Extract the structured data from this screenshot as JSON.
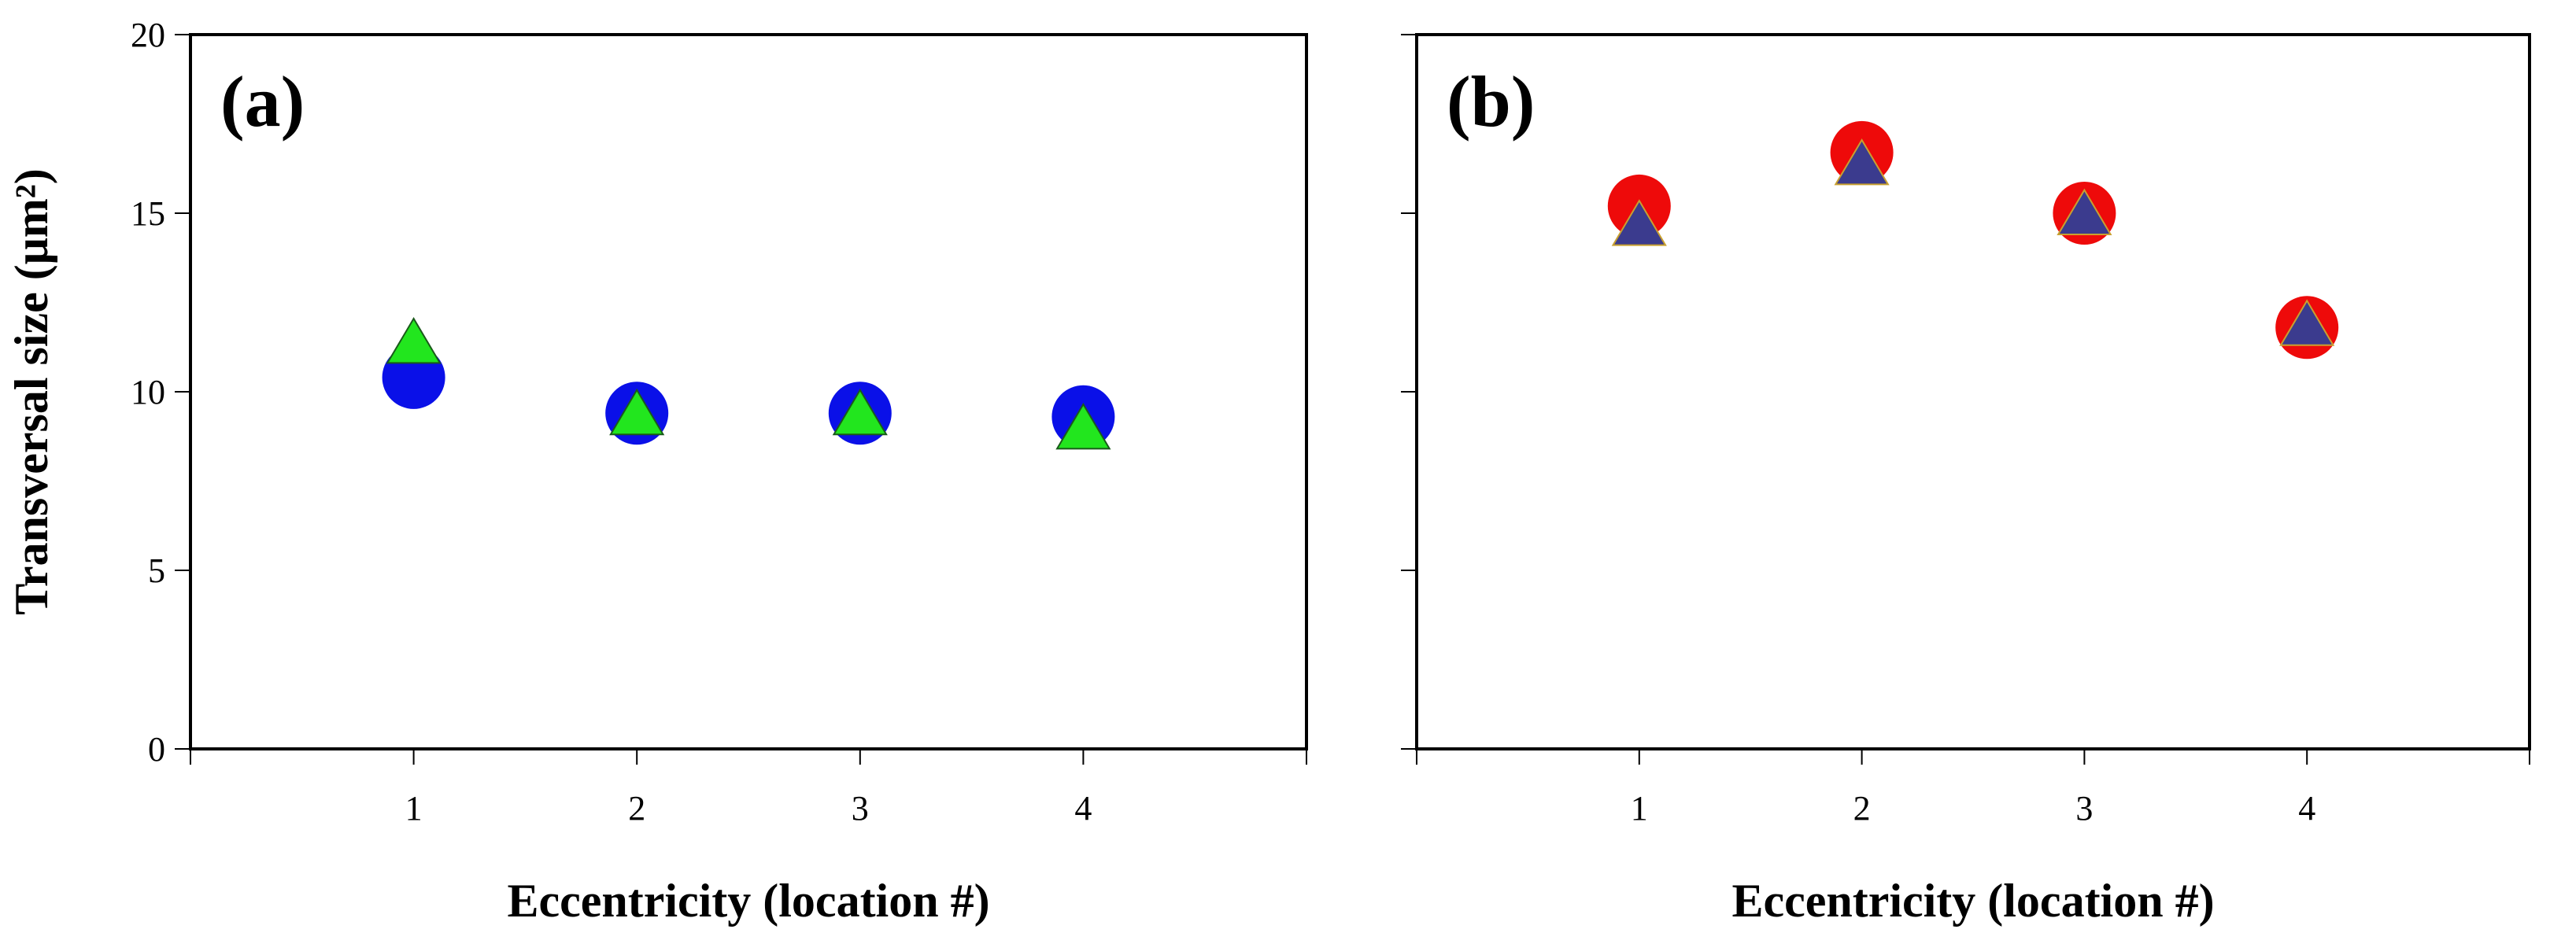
{
  "chart_data": [
    {
      "type": "scatter",
      "panel_label": "(a)",
      "xlabel": "Eccentricity (location #)",
      "ylabel": "Transversal size (μm²)",
      "xlim": [
        0,
        5
      ],
      "ylim": [
        0,
        20
      ],
      "x_ticks": [
        1,
        2,
        3,
        4
      ],
      "y_ticks": [
        0,
        5,
        10,
        15,
        20
      ],
      "grid": false,
      "series": [
        {
          "marker": "circle",
          "color": "#0a10e8",
          "x": [
            1,
            2,
            3,
            4
          ],
          "values": [
            10.4,
            9.4,
            9.4,
            9.3
          ]
        },
        {
          "marker": "triangle",
          "color": "#22e61e",
          "x": [
            1,
            2,
            3,
            4
          ],
          "values": [
            11.3,
            9.3,
            9.3,
            8.9
          ]
        }
      ]
    },
    {
      "type": "scatter",
      "panel_label": "(b)",
      "xlabel": "Eccentricity (location #)",
      "ylabel": "",
      "xlim": [
        0,
        5
      ],
      "ylim": [
        0,
        20
      ],
      "x_ticks": [
        1,
        2,
        3,
        4
      ],
      "y_ticks": [
        0,
        5,
        10,
        15,
        20
      ],
      "grid": false,
      "series": [
        {
          "marker": "circle",
          "color": "#ee0a0a",
          "x": [
            1,
            2,
            3,
            4
          ],
          "values": [
            15.2,
            16.7,
            15.0,
            11.8
          ]
        },
        {
          "marker": "triangle",
          "color": "#3b3b8e",
          "x": [
            1,
            2,
            3,
            4
          ],
          "values": [
            14.6,
            16.3,
            14.9,
            11.8
          ]
        }
      ]
    }
  ]
}
